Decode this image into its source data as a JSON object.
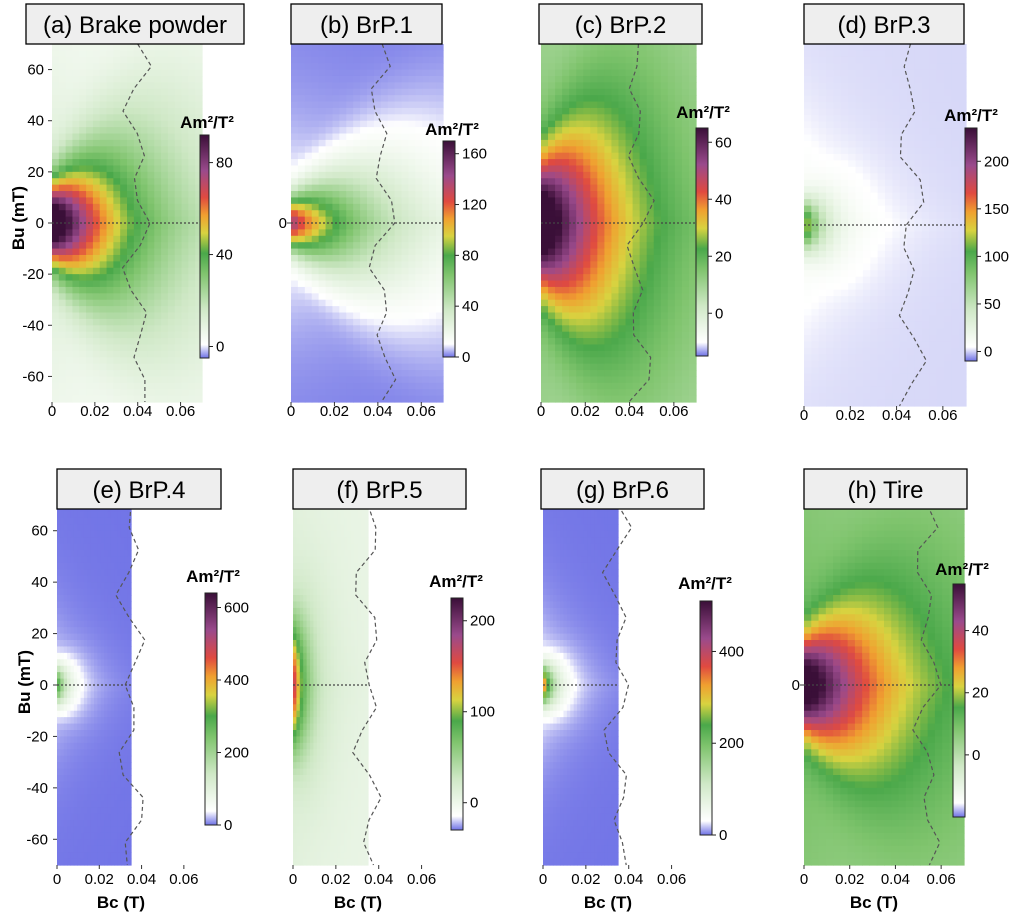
{
  "figure": {
    "xlabel": "Bc (T)",
    "ylabel": "Bu (mT)",
    "colorbar_unit": "Am²/T²"
  },
  "chart_data": [
    {
      "type": "heatmap",
      "panel": "a",
      "title": "(a) Brake powder",
      "xlim": [
        0,
        0.07
      ],
      "ylim": [
        -70,
        70
      ],
      "x_ticks": [
        "0",
        "0.02",
        "0.04",
        "0.06"
      ],
      "x_tick_values": [
        0,
        0.02,
        0.04,
        0.06
      ],
      "y_ticks": [
        "60",
        "40",
        "20",
        "0",
        "-20",
        "-40",
        "-60"
      ],
      "y_tick_values": [
        60,
        40,
        20,
        0,
        -20,
        -40,
        -60
      ],
      "ylabel": "Bu (mT)",
      "xlabel": "",
      "colorbar": {
        "min": -5,
        "max": 92,
        "ticks": [
          "80",
          "40",
          "0"
        ],
        "tick_values": [
          80,
          40,
          0
        ]
      },
      "peak": 92,
      "spread_mT": 11,
      "background": 4,
      "extent_T": 0.07
    },
    {
      "type": "heatmap",
      "panel": "b",
      "title": "(b)  BrP.1",
      "xlim": [
        0,
        0.07
      ],
      "ylim": [
        -70,
        70
      ],
      "x_ticks": [
        "0",
        "0.02",
        "0.04",
        "0.06"
      ],
      "x_tick_values": [
        0,
        0.02,
        0.04,
        0.06
      ],
      "y_ticks": [
        "0"
      ],
      "y_tick_values": [
        0
      ],
      "ylabel": "",
      "xlabel": "",
      "colorbar": {
        "min": 0,
        "max": 170,
        "ticks": [
          "160",
          "120",
          "80",
          "40",
          "0"
        ],
        "tick_values": [
          160,
          120,
          80,
          40,
          0
        ]
      },
      "peak": 120,
      "spread_mT": 7,
      "background": 1,
      "extent_T": 0.07
    },
    {
      "type": "heatmap",
      "panel": "c",
      "title": "(c) BrP.2",
      "xlim": [
        0,
        0.07
      ],
      "ylim": [
        -70,
        70
      ],
      "x_ticks": [
        "0",
        "0.02",
        "0.04",
        "0.06"
      ],
      "x_tick_values": [
        0,
        0.02,
        0.04,
        0.06
      ],
      "y_ticks": [],
      "y_tick_values": [],
      "ylabel": "",
      "xlabel": "",
      "colorbar": {
        "min": -15,
        "max": 65,
        "ticks": [
          "60",
          "40",
          "20",
          "0"
        ],
        "tick_values": [
          60,
          40,
          20,
          0
        ]
      },
      "peak": 62,
      "spread_mT": 17,
      "background": 8,
      "extent_T": 0.07
    },
    {
      "type": "heatmap",
      "panel": "d",
      "title": "(d)  BrP.3",
      "xlim": [
        0,
        0.07
      ],
      "ylim": [
        -70,
        70
      ],
      "x_ticks": [
        "0",
        "0.02",
        "0.04",
        "0.06"
      ],
      "x_tick_values": [
        0,
        0.02,
        0.04,
        0.06
      ],
      "y_ticks": [],
      "y_tick_values": [],
      "ylabel": "",
      "xlabel": "",
      "colorbar": {
        "min": -10,
        "max": 235,
        "ticks": [
          "200",
          "150",
          "100",
          "50",
          "0"
        ],
        "tick_values": [
          200,
          150,
          100,
          50,
          0
        ]
      },
      "peak": 120,
      "spread_mT": 6,
      "background": 1,
      "extent_T": 0.015
    },
    {
      "type": "heatmap",
      "panel": "e",
      "title": "(e)  BrP.4",
      "xlim": [
        0,
        0.07
      ],
      "ylim": [
        -70,
        70
      ],
      "x_ticks": [
        "0",
        "0.02",
        "0.04",
        "0.06"
      ],
      "x_tick_values": [
        0,
        0.02,
        0.04,
        0.06
      ],
      "y_ticks": [
        "60",
        "40",
        "20",
        "0",
        "-20",
        "-40",
        "-60"
      ],
      "y_tick_values": [
        60,
        40,
        20,
        0,
        -20,
        -40,
        -60
      ],
      "ylabel": "Bu (mT)",
      "xlabel": "Bc (T)",
      "colorbar": {
        "min": 0,
        "max": 640,
        "ticks": [
          "600",
          "400",
          "200",
          "0"
        ],
        "tick_values": [
          600,
          400,
          200,
          0
        ]
      },
      "peak": 280,
      "spread_mT": 5,
      "background": 1,
      "extent_T": 0.01,
      "data_xmax": 0.035
    },
    {
      "type": "heatmap",
      "panel": "f",
      "title": "(f)  BrP.5",
      "xlim": [
        0,
        0.07
      ],
      "ylim": [
        -70,
        70
      ],
      "x_ticks": [
        "0",
        "0.02",
        "0.04",
        "0.06"
      ],
      "x_tick_values": [
        0,
        0.02,
        0.04,
        0.06
      ],
      "y_ticks": [],
      "y_tick_values": [],
      "ylabel": "",
      "xlabel": "Bc (T)",
      "colorbar": {
        "min": -30,
        "max": 225,
        "ticks": [
          "200",
          "100",
          "0"
        ],
        "tick_values": [
          200,
          100,
          0
        ]
      },
      "peak": 150,
      "spread_mT": 16,
      "background": 4,
      "extent_T": 0.012,
      "data_xmax": 0.035
    },
    {
      "type": "heatmap",
      "panel": "g",
      "title": "(g)  BrP.6",
      "xlim": [
        0,
        0.07
      ],
      "ylim": [
        -70,
        70
      ],
      "x_ticks": [
        "0",
        "0.02",
        "0.04",
        "0.06"
      ],
      "x_tick_values": [
        0,
        0.02,
        0.04,
        0.06
      ],
      "y_ticks": [],
      "y_tick_values": [],
      "ylabel": "",
      "xlabel": "Bc (T)",
      "colorbar": {
        "min": 0,
        "max": 510,
        "ticks": [
          "400",
          "200",
          "0"
        ],
        "tick_values": [
          400,
          200,
          0
        ]
      },
      "peak": 330,
      "spread_mT": 5,
      "background": 1,
      "extent_T": 0.01,
      "data_xmax": 0.035
    },
    {
      "type": "heatmap",
      "panel": "h",
      "title": "(h)  Tire",
      "xlim": [
        0,
        0.07
      ],
      "ylim": [
        -70,
        70
      ],
      "x_ticks": [
        "0",
        "0.02",
        "0.04",
        "0.06"
      ],
      "x_tick_values": [
        0,
        0.02,
        0.04,
        0.06
      ],
      "y_ticks": [
        "0"
      ],
      "y_tick_values": [
        0
      ],
      "ylabel": "",
      "xlabel": "Bc (T)",
      "colorbar": {
        "min": -20,
        "max": 55,
        "ticks": [
          "40",
          "20",
          "0"
        ],
        "tick_values": [
          40,
          20,
          0
        ]
      },
      "peak": 52,
      "spread_mT": 12,
      "background": 6,
      "extent_T": 0.07
    }
  ]
}
